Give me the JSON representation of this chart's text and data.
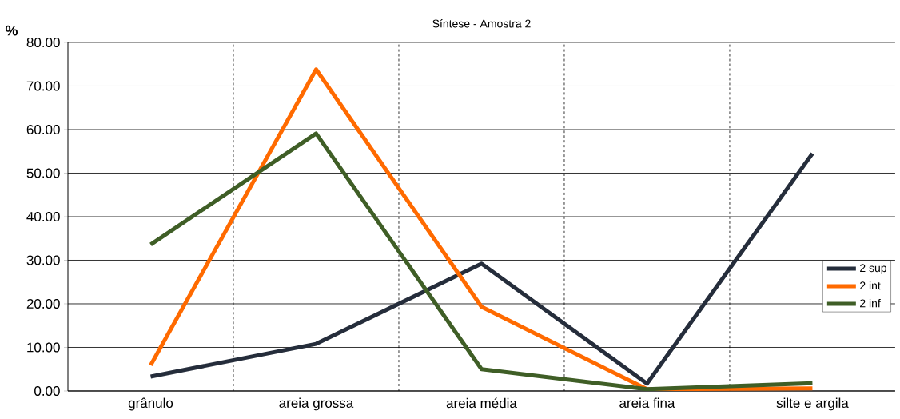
{
  "chart_data": {
    "type": "line",
    "title": "Síntese - Amostra 2",
    "ylabel": "%",
    "categories": [
      "grânulo",
      "areia grossa",
      "areia média",
      "areia fina",
      "silte e argila"
    ],
    "series": [
      {
        "name": "2 sup",
        "color": "#252d3b",
        "values": [
          3.3,
          10.8,
          29.2,
          1.7,
          54.5
        ]
      },
      {
        "name": "2 int",
        "color": "#ff6a00",
        "values": [
          5.9,
          73.8,
          19.3,
          0.4,
          0.6
        ]
      },
      {
        "name": "2 inf",
        "color": "#3f5e26",
        "values": [
          33.6,
          59.1,
          5.0,
          0.4,
          1.8
        ]
      }
    ],
    "ylim": [
      0,
      80
    ],
    "yticks": [
      {
        "value": 0,
        "label": "0.00"
      },
      {
        "value": 10,
        "label": "10.00"
      },
      {
        "value": 20,
        "label": "20.00"
      },
      {
        "value": 30,
        "label": "30.00"
      },
      {
        "value": 40,
        "label": "40.00"
      },
      {
        "value": 50,
        "label": "50.00"
      },
      {
        "value": 60,
        "label": "60.00"
      },
      {
        "value": 70,
        "label": "70.00"
      },
      {
        "value": 80,
        "label": "80.00"
      }
    ],
    "grid": true,
    "legend": "right",
    "marker": "none",
    "line_style": "solid"
  }
}
